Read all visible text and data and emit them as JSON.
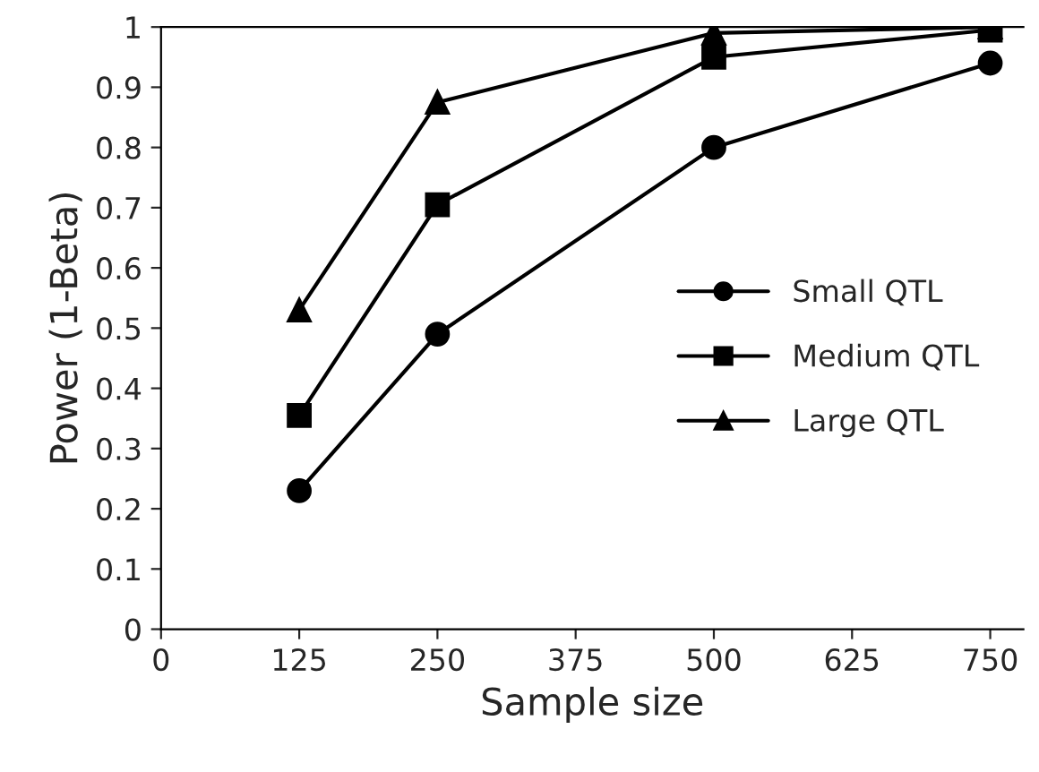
{
  "chart_data": {
    "type": "line",
    "xlabel": "Sample size",
    "ylabel": "Power (1-Beta)",
    "x": [
      125,
      250,
      500,
      750
    ],
    "series": [
      {
        "name": "Small QTL",
        "color": "#000000",
        "marker": "circle",
        "values": [
          0.23,
          0.49,
          0.8,
          0.94
        ]
      },
      {
        "name": "Medium QTL",
        "color": "#000000",
        "marker": "square",
        "values": [
          0.355,
          0.705,
          0.95,
          0.995
        ]
      },
      {
        "name": "Large QTL",
        "color": "#000000",
        "marker": "triangle",
        "values": [
          0.53,
          0.875,
          0.99,
          1.0
        ]
      }
    ],
    "xlim": [
      0,
      780
    ],
    "xticks": [
      0,
      125,
      250,
      375,
      500,
      625,
      750
    ],
    "ylim": [
      0,
      1
    ],
    "yticks": [
      0,
      0.1,
      0.2,
      0.3,
      0.4,
      0.5,
      0.6,
      0.7,
      0.8,
      0.9,
      1
    ],
    "grid": false,
    "legend": "right",
    "line_style": "solid"
  }
}
